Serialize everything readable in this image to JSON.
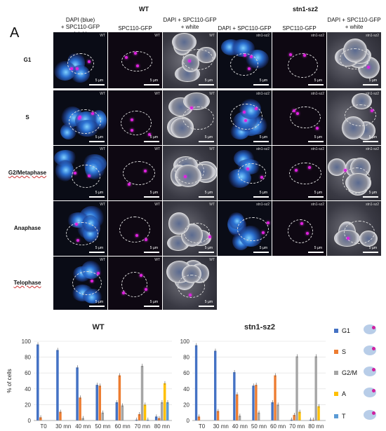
{
  "panel_letter": "A",
  "groups": {
    "wt": "WT",
    "mutant": "stn1-sz2"
  },
  "column_headers": [
    "DAPI (blue)\n+ SPC110-GFP (pink)",
    "SPC110-GFP",
    "DAPI + SPC110-GFP\n+ white",
    "DAPI + SPC110-GFP",
    "SPC110-GFP",
    "DAPI + SPC110-GFP\n+ white"
  ],
  "row_labels": [
    "G1",
    "S",
    "G2/Metaphase",
    "Anaphase",
    "Telophase"
  ],
  "tile_tags": {
    "wt": "WT",
    "mutant": "stn1-sz2"
  },
  "scale_label": "5 µm",
  "colors": {
    "G1": "#4472c4",
    "S": "#ed7d31",
    "G2M": "#a5a5a5",
    "A": "#ffc000",
    "T": "#5b9bd5"
  },
  "chart_data": [
    {
      "type": "bar",
      "title": "WT",
      "ylabel": "% of cells",
      "ylim": [
        0,
        100
      ],
      "yticks": [
        0,
        20,
        40,
        60,
        80,
        100
      ],
      "categories": [
        "T0",
        "30 mn",
        "40 mn",
        "50 mn",
        "60 mn",
        "70 mn",
        "80 mn"
      ],
      "series": [
        {
          "name": "G1",
          "values": [
            96,
            89,
            67,
            45,
            23,
            1,
            5
          ]
        },
        {
          "name": "S",
          "values": [
            4,
            11,
            29,
            44,
            57,
            8,
            3
          ]
        },
        {
          "name": "G2/M",
          "values": [
            0,
            0,
            3,
            10,
            19,
            69,
            23
          ]
        },
        {
          "name": "A",
          "values": [
            0,
            0,
            0,
            0,
            0,
            20,
            47
          ]
        },
        {
          "name": "T",
          "values": [
            0,
            0,
            0,
            0,
            0,
            1,
            23
          ]
        }
      ]
    },
    {
      "type": "bar",
      "title": "stn1-sz2",
      "ylabel": "",
      "ylim": [
        0,
        100
      ],
      "yticks": [
        0,
        20,
        40,
        60,
        80,
        100
      ],
      "categories": [
        "T0",
        "30 mn",
        "40 mn",
        "50 mn",
        "60 mn",
        "70 mn",
        "80 mn"
      ],
      "series": [
        {
          "name": "G1",
          "values": [
            95,
            88,
            61,
            44,
            23,
            1,
            1
          ]
        },
        {
          "name": "S",
          "values": [
            5,
            12,
            33,
            45,
            57,
            7,
            1
          ]
        },
        {
          "name": "G2/M",
          "values": [
            0,
            0,
            6,
            10,
            20,
            81,
            81
          ]
        },
        {
          "name": "A",
          "values": [
            0,
            0,
            0,
            0,
            0,
            11,
            18
          ]
        },
        {
          "name": "T",
          "values": [
            0,
            0,
            0,
            0,
            0,
            0,
            0
          ]
        }
      ]
    }
  ],
  "legend": [
    "G1",
    "S",
    "G2/M",
    "A",
    "T"
  ]
}
